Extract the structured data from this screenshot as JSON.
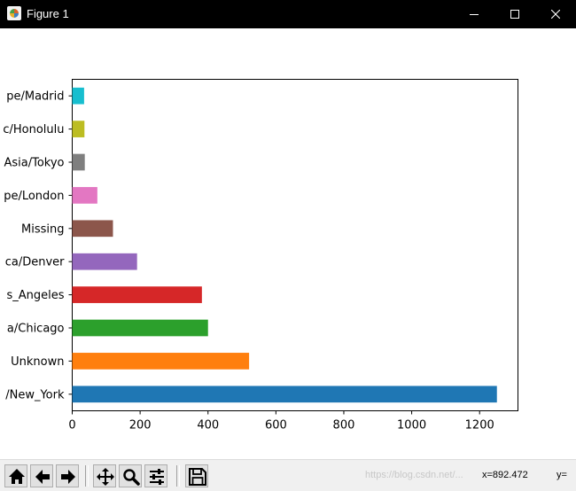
{
  "window": {
    "title": "Figure 1",
    "icon": "matplotlib-icon",
    "controls": [
      "minimize-icon",
      "maximize-icon",
      "close-icon"
    ]
  },
  "toolbar": {
    "buttons": [
      "home-icon",
      "back-arrow-icon",
      "forward-arrow-icon",
      "pan-icon",
      "zoom-icon",
      "subplots-config-icon",
      "save-icon"
    ],
    "coord_x": "x=892.472",
    "coord_y": "y="
  },
  "watermark": "https://blog.csdn.net/...",
  "chart_data": {
    "type": "bar",
    "orientation": "horizontal",
    "categories": [
      "America/New_York",
      "Unknown",
      "America/Chicago",
      "America/Los_Angeles",
      "America/Denver",
      "Missing",
      "Europe/London",
      "Asia/Tokyo",
      "Pacific/Honolulu",
      "Europe/Madrid"
    ],
    "category_labels": [
      "/New_York",
      "Unknown",
      "a/Chicago",
      "s_Angeles",
      "ca/Denver",
      "Missing",
      "pe/London",
      "Asia/Tokyo",
      "c/Honolulu",
      "pe/Madrid"
    ],
    "values": [
      1251,
      521,
      400,
      382,
      191,
      120,
      74,
      37,
      36,
      35
    ],
    "colors": [
      "#1f77b4",
      "#ff7f0e",
      "#2ca02c",
      "#d62728",
      "#9467bd",
      "#8c564b",
      "#e377c2",
      "#7f7f7f",
      "#bcbd22",
      "#17becf"
    ],
    "xticks": [
      0,
      200,
      400,
      600,
      800,
      1000,
      1200
    ],
    "xlim": [
      0,
      1313
    ],
    "title": "",
    "xlabel": "",
    "ylabel": "",
    "grid": false,
    "legend": "none"
  }
}
